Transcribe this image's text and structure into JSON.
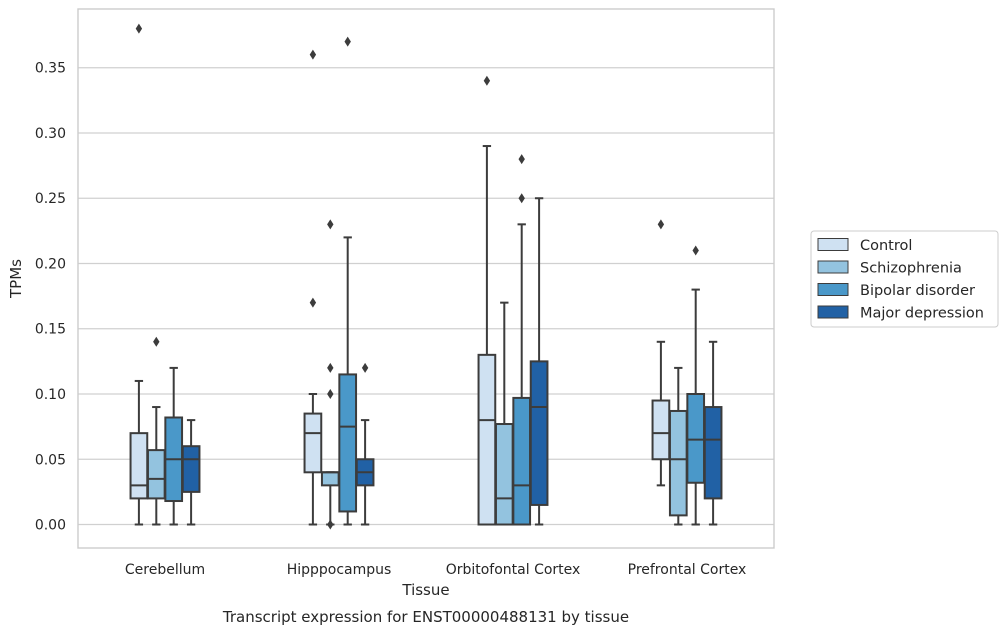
{
  "chart_data": {
    "type": "boxplot",
    "caption": "Transcript expression for ENST00000488131 by tissue",
    "xlabel": "Tissue",
    "ylabel": "TPMs",
    "ylim": [
      -0.018,
      0.395
    ],
    "yticks": [
      "0.00",
      "0.05",
      "0.10",
      "0.15",
      "0.20",
      "0.25",
      "0.30",
      "0.35"
    ],
    "grid": true,
    "legend_position": "right",
    "categories": [
      "Cerebellum",
      "Hipppocampus",
      "Orbitofontal Cortex",
      "Prefrontal Cortex"
    ],
    "series": [
      {
        "name": "Control",
        "color": "#cfe1f2",
        "boxes": [
          {
            "whislo": 0.0,
            "q1": 0.02,
            "med": 0.03,
            "q3": 0.07,
            "whishi": 0.11,
            "fliers": [
              0.38
            ]
          },
          {
            "whislo": 0.0,
            "q1": 0.04,
            "med": 0.07,
            "q3": 0.085,
            "whishi": 0.1,
            "fliers": [
              0.17,
              0.36
            ]
          },
          {
            "whislo": 0.0,
            "q1": 0.0,
            "med": 0.08,
            "q3": 0.13,
            "whishi": 0.29,
            "fliers": [
              0.34
            ]
          },
          {
            "whislo": 0.03,
            "q1": 0.05,
            "med": 0.07,
            "q3": 0.095,
            "whishi": 0.14,
            "fliers": [
              0.23
            ]
          }
        ]
      },
      {
        "name": "Schizophrenia",
        "color": "#93c3df",
        "boxes": [
          {
            "whislo": 0.0,
            "q1": 0.02,
            "med": 0.035,
            "q3": 0.057,
            "whishi": 0.09,
            "fliers": [
              0.14
            ]
          },
          {
            "whislo": 0.0,
            "q1": 0.03,
            "med": 0.04,
            "q3": 0.04,
            "whishi": 0.04,
            "fliers": [
              0.0,
              0.1,
              0.12,
              0.23
            ]
          },
          {
            "whislo": 0.0,
            "q1": 0.0,
            "med": 0.02,
            "q3": 0.077,
            "whishi": 0.17,
            "fliers": []
          },
          {
            "whislo": 0.0,
            "q1": 0.007,
            "med": 0.05,
            "q3": 0.087,
            "whishi": 0.12,
            "fliers": []
          }
        ]
      },
      {
        "name": "Bipolar disorder",
        "color": "#4a98c9",
        "boxes": [
          {
            "whislo": 0.0,
            "q1": 0.018,
            "med": 0.05,
            "q3": 0.082,
            "whishi": 0.12,
            "fliers": []
          },
          {
            "whislo": 0.0,
            "q1": 0.01,
            "med": 0.075,
            "q3": 0.115,
            "whishi": 0.22,
            "fliers": [
              0.37
            ]
          },
          {
            "whislo": 0.0,
            "q1": 0.0,
            "med": 0.03,
            "q3": 0.097,
            "whishi": 0.23,
            "fliers": [
              0.25,
              0.28
            ]
          },
          {
            "whislo": 0.0,
            "q1": 0.032,
            "med": 0.065,
            "q3": 0.1,
            "whishi": 0.18,
            "fliers": [
              0.21
            ]
          }
        ]
      },
      {
        "name": "Major depression",
        "color": "#2161a5",
        "boxes": [
          {
            "whislo": 0.0,
            "q1": 0.025,
            "med": 0.05,
            "q3": 0.06,
            "whishi": 0.08,
            "fliers": []
          },
          {
            "whislo": 0.0,
            "q1": 0.03,
            "med": 0.04,
            "q3": 0.05,
            "whishi": 0.08,
            "fliers": [
              0.12
            ]
          },
          {
            "whislo": 0.0,
            "q1": 0.015,
            "med": 0.09,
            "q3": 0.125,
            "whishi": 0.25,
            "fliers": []
          },
          {
            "whislo": 0.0,
            "q1": 0.02,
            "med": 0.065,
            "q3": 0.09,
            "whishi": 0.14,
            "fliers": []
          }
        ]
      }
    ]
  }
}
